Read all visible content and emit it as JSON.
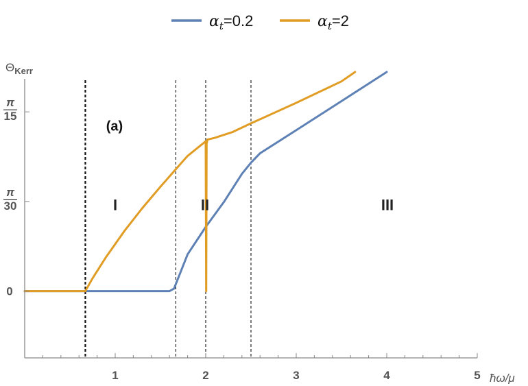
{
  "chart_data": {
    "type": "line",
    "title": "",
    "xlabel": "ħω/μ",
    "ylabel": "Θ",
    "ylabel_sub": "Kerr",
    "xlim": [
      0,
      5
    ],
    "ylim": [
      -0.078,
      0.248
    ],
    "x_ticks": [
      {
        "value": 1,
        "label": "1"
      },
      {
        "value": 2,
        "label": "2"
      },
      {
        "value": 3,
        "label": "3"
      },
      {
        "value": 4,
        "label": "4"
      },
      {
        "value": 5,
        "label": "5"
      }
    ],
    "y_ticks": [
      {
        "value": 0,
        "num": "0",
        "den": ""
      },
      {
        "value": 0.10472,
        "num": "π",
        "den": "30"
      },
      {
        "value": 0.20944,
        "num": "π",
        "den": "15"
      }
    ],
    "grid": false,
    "legend": "top-center",
    "series": [
      {
        "name_main": "α",
        "name_sub": "t",
        "name_rest": "=0.2",
        "color": "#5e81b5",
        "x": [
          0,
          0.67,
          1.0,
          1.2,
          1.4,
          1.6,
          1.65,
          1.8,
          2.0,
          2.2,
          2.4,
          2.5,
          2.6,
          3.0,
          3.5,
          4.0
        ],
        "y": [
          0,
          0,
          0,
          0,
          0,
          0,
          0.003,
          0.043,
          0.075,
          0.104,
          0.137,
          0.15,
          0.161,
          0.188,
          0.222,
          0.256
        ]
      },
      {
        "name_main": "α",
        "name_sub": "t",
        "name_rest": "=2",
        "color": "#e19c24",
        "x": [
          0,
          0.67,
          0.75,
          0.9,
          1.1,
          1.3,
          1.5,
          1.65,
          1.8,
          2.0,
          2.005,
          2.01,
          2.02,
          2.1,
          2.3,
          2.5,
          3.0,
          3.5,
          3.65
        ],
        "y": [
          0,
          0,
          0.015,
          0.04,
          0.07,
          0.097,
          0.122,
          0.14,
          0.158,
          0.175,
          0.0,
          0.172,
          0.177,
          0.179,
          0.186,
          0.196,
          0.22,
          0.245,
          0.256
        ]
      }
    ],
    "vlines": [
      0.67,
      1.67,
      2.0,
      2.5
    ],
    "regions": [
      {
        "label": "I",
        "x": 1.0,
        "y": 0.098
      },
      {
        "label": "II",
        "x": 2.0,
        "y": 0.098
      },
      {
        "label": "III",
        "x": 3.0,
        "y": 0.098
      }
    ],
    "annotations": [
      {
        "text": "(a)",
        "x": 1.0,
        "y": 0.193
      }
    ]
  }
}
